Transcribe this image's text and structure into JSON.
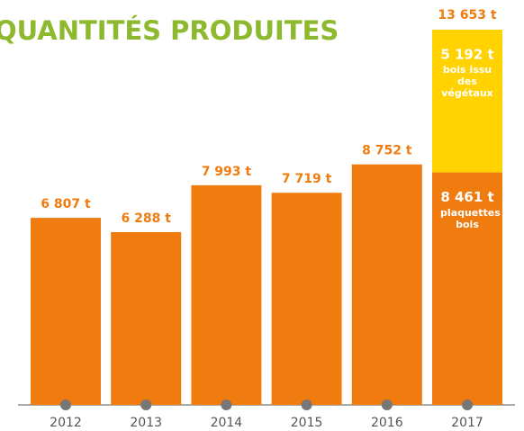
{
  "chart_data": {
    "type": "stacked-bar",
    "title": "QUANTITÉS PRODUITES",
    "categories": [
      "2012",
      "2013",
      "2014",
      "2015",
      "2016",
      "2017"
    ],
    "series": [
      {
        "name": "plaquettes bois",
        "color": "#f07c0f",
        "values": [
          6807,
          6288,
          7993,
          7719,
          8752,
          8461
        ],
        "value_labels": [
          "6 807 t",
          "6 288 t",
          "7 993 t",
          "7 719 t",
          "8 752 t",
          "8 461 t"
        ]
      },
      {
        "name": "bois issu des végétaux",
        "color": "#ffd200",
        "values": [
          null,
          null,
          null,
          null,
          null,
          5192
        ],
        "value_labels": [
          null,
          null,
          null,
          null,
          null,
          "5 192 t"
        ]
      }
    ],
    "total": {
      "value": 13653,
      "label": "13 653 t"
    }
  }
}
